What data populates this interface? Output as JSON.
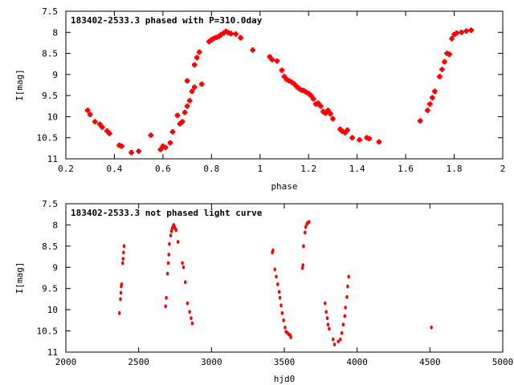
{
  "chart_data": [
    {
      "type": "scatter",
      "title": "183402-2533.3 phased with P=310.0day",
      "xlabel": "phase",
      "ylabel": "I[mag]",
      "xlim": [
        0.2,
        2.0
      ],
      "ylim": [
        7.5,
        11.0
      ],
      "y_inverted": true,
      "xticks": [
        0.2,
        0.4,
        0.6,
        0.8,
        1.0,
        1.2,
        1.4,
        1.6,
        1.8,
        2.0
      ],
      "xticklabels": [
        "0.2",
        "0.4",
        "0.6",
        "0.8",
        "1",
        "1.2",
        "1.4",
        "1.6",
        "1.8",
        "2"
      ],
      "yticks": [
        7.5,
        8.0,
        8.5,
        9.0,
        9.5,
        10.0,
        10.5,
        11.0
      ],
      "yticklabels": [
        "7.5",
        "8",
        "8.5",
        "9",
        "9.5",
        "10",
        "10.5",
        "11"
      ],
      "marker_color": "#ff0000",
      "points": [
        [
          0.29,
          9.85
        ],
        [
          0.3,
          9.95
        ],
        [
          0.32,
          10.12
        ],
        [
          0.34,
          10.18
        ],
        [
          0.35,
          10.25
        ],
        [
          0.37,
          10.34
        ],
        [
          0.38,
          10.4
        ],
        [
          0.42,
          10.68
        ],
        [
          0.43,
          10.7
        ],
        [
          0.47,
          10.85
        ],
        [
          0.5,
          10.82
        ],
        [
          0.55,
          10.44
        ],
        [
          0.59,
          10.78
        ],
        [
          0.6,
          10.7
        ],
        [
          0.61,
          10.73
        ],
        [
          0.63,
          10.62
        ],
        [
          0.64,
          10.36
        ],
        [
          0.66,
          9.97
        ],
        [
          0.67,
          10.17
        ],
        [
          0.68,
          10.12
        ],
        [
          0.69,
          9.9
        ],
        [
          0.7,
          9.75
        ],
        [
          0.7,
          9.15
        ],
        [
          0.71,
          9.62
        ],
        [
          0.72,
          9.4
        ],
        [
          0.73,
          9.3
        ],
        [
          0.73,
          8.77
        ],
        [
          0.74,
          8.6
        ],
        [
          0.75,
          8.47
        ],
        [
          0.76,
          9.23
        ],
        [
          0.79,
          8.22
        ],
        [
          0.8,
          8.18
        ],
        [
          0.81,
          8.14
        ],
        [
          0.82,
          8.12
        ],
        [
          0.83,
          8.1
        ],
        [
          0.84,
          8.05
        ],
        [
          0.85,
          8.02
        ],
        [
          0.86,
          7.98
        ],
        [
          0.87,
          8.01
        ],
        [
          0.88,
          8.03
        ],
        [
          0.9,
          8.04
        ],
        [
          0.92,
          8.13
        ],
        [
          0.97,
          8.42
        ],
        [
          1.04,
          8.58
        ],
        [
          1.05,
          8.65
        ],
        [
          1.07,
          8.68
        ],
        [
          1.09,
          8.9
        ],
        [
          1.1,
          9.05
        ],
        [
          1.11,
          9.12
        ],
        [
          1.12,
          9.15
        ],
        [
          1.13,
          9.18
        ],
        [
          1.14,
          9.22
        ],
        [
          1.15,
          9.28
        ],
        [
          1.16,
          9.33
        ],
        [
          1.17,
          9.37
        ],
        [
          1.18,
          9.38
        ],
        [
          1.19,
          9.42
        ],
        [
          1.2,
          9.45
        ],
        [
          1.21,
          9.5
        ],
        [
          1.22,
          9.58
        ],
        [
          1.23,
          9.7
        ],
        [
          1.24,
          9.68
        ],
        [
          1.25,
          9.75
        ],
        [
          1.26,
          9.88
        ],
        [
          1.27,
          9.92
        ],
        [
          1.28,
          9.85
        ],
        [
          1.29,
          9.93
        ],
        [
          1.3,
          10.05
        ],
        [
          1.33,
          10.3
        ],
        [
          1.34,
          10.35
        ],
        [
          1.35,
          10.38
        ],
        [
          1.36,
          10.32
        ],
        [
          1.38,
          10.5
        ],
        [
          1.41,
          10.55
        ],
        [
          1.44,
          10.5
        ],
        [
          1.45,
          10.52
        ],
        [
          1.49,
          10.6
        ],
        [
          1.66,
          10.1
        ],
        [
          1.69,
          9.85
        ],
        [
          1.7,
          9.7
        ],
        [
          1.71,
          9.55
        ],
        [
          1.72,
          9.4
        ],
        [
          1.74,
          9.05
        ],
        [
          1.75,
          8.88
        ],
        [
          1.76,
          8.7
        ],
        [
          1.77,
          8.5
        ],
        [
          1.78,
          8.52
        ],
        [
          1.79,
          8.15
        ],
        [
          1.8,
          8.05
        ],
        [
          1.81,
          8.02
        ],
        [
          1.83,
          8.0
        ],
        [
          1.85,
          7.97
        ],
        [
          1.87,
          7.95
        ]
      ]
    },
    {
      "type": "scatter",
      "title": "183402-2533.3 not phased light curve",
      "xlabel": "hjd0",
      "ylabel": "I[mag]",
      "xlim": [
        2000,
        5000
      ],
      "ylim": [
        7.5,
        11.0
      ],
      "y_inverted": true,
      "xticks": [
        2000,
        2500,
        3000,
        3500,
        4000,
        4500,
        5000
      ],
      "xticklabels": [
        "2000",
        "2500",
        "3000",
        "3500",
        "4000",
        "4500",
        "5000"
      ],
      "yticks": [
        7.5,
        8.0,
        8.5,
        9.0,
        9.5,
        10.0,
        10.5,
        11.0
      ],
      "yticklabels": [
        "7.5",
        "8",
        "8.5",
        "9",
        "9.5",
        "10",
        "10.5",
        "11"
      ],
      "marker_color": "#ff0000",
      "points": [
        [
          2368,
          10.08
        ],
        [
          2375,
          9.75
        ],
        [
          2378,
          9.6
        ],
        [
          2380,
          9.45
        ],
        [
          2383,
          9.4
        ],
        [
          2390,
          8.9
        ],
        [
          2393,
          8.8
        ],
        [
          2396,
          8.65
        ],
        [
          2400,
          8.5
        ],
        [
          2685,
          9.92
        ],
        [
          2690,
          9.72
        ],
        [
          2698,
          9.15
        ],
        [
          2703,
          8.9
        ],
        [
          2707,
          8.7
        ],
        [
          2711,
          8.45
        ],
        [
          2720,
          8.25
        ],
        [
          2725,
          8.15
        ],
        [
          2730,
          8.08
        ],
        [
          2735,
          8.05
        ],
        [
          2740,
          8.0
        ],
        [
          2745,
          8.03
        ],
        [
          2750,
          8.08
        ],
        [
          2757,
          8.12
        ],
        [
          2770,
          8.4
        ],
        [
          2800,
          8.9
        ],
        [
          2808,
          9.0
        ],
        [
          2820,
          9.35
        ],
        [
          2835,
          9.85
        ],
        [
          2850,
          10.05
        ],
        [
          2860,
          10.2
        ],
        [
          2868,
          10.32
        ],
        [
          3418,
          8.65
        ],
        [
          3422,
          8.6
        ],
        [
          3435,
          9.05
        ],
        [
          3445,
          9.22
        ],
        [
          3455,
          9.4
        ],
        [
          3465,
          9.58
        ],
        [
          3470,
          9.72
        ],
        [
          3478,
          9.9
        ],
        [
          3485,
          10.08
        ],
        [
          3495,
          10.25
        ],
        [
          3505,
          10.42
        ],
        [
          3512,
          10.52
        ],
        [
          3522,
          10.55
        ],
        [
          3530,
          10.58
        ],
        [
          3540,
          10.6
        ],
        [
          3545,
          10.65
        ],
        [
          3625,
          9.02
        ],
        [
          3628,
          8.95
        ],
        [
          3632,
          8.5
        ],
        [
          3642,
          8.18
        ],
        [
          3647,
          8.05
        ],
        [
          3655,
          7.98
        ],
        [
          3660,
          7.95
        ],
        [
          3670,
          7.93
        ],
        [
          3780,
          9.85
        ],
        [
          3788,
          10.05
        ],
        [
          3795,
          10.2
        ],
        [
          3800,
          10.35
        ],
        [
          3808,
          10.45
        ],
        [
          3835,
          10.7
        ],
        [
          3845,
          10.82
        ],
        [
          3870,
          10.75
        ],
        [
          3885,
          10.7
        ],
        [
          3895,
          10.55
        ],
        [
          3905,
          10.35
        ],
        [
          3915,
          10.15
        ],
        [
          3920,
          9.95
        ],
        [
          3930,
          9.7
        ],
        [
          3935,
          9.45
        ],
        [
          3942,
          9.22
        ],
        [
          4510,
          10.42
        ]
      ]
    }
  ]
}
